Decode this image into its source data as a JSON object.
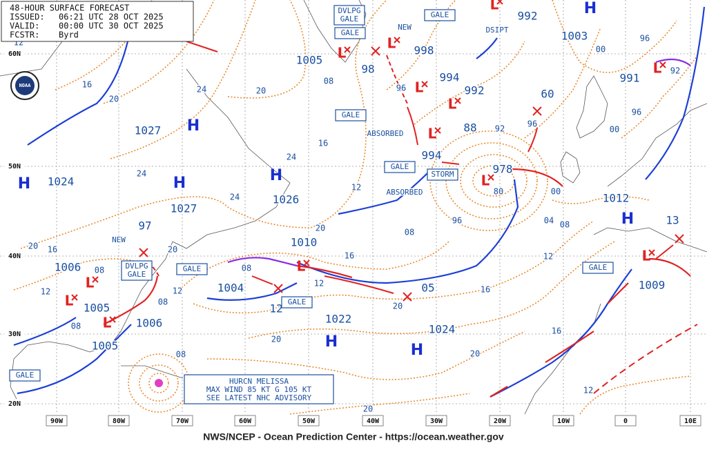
{
  "header": {
    "title": "48-HOUR SURFACE FORECAST",
    "issued_label": "ISSUED:",
    "issued": "06:21 UTC 28 OCT 2025",
    "valid_label": "VALID:",
    "valid": "00:00 UTC 30 OCT 2025",
    "fcstr_label": "FCSTR:",
    "fcstr": "Byrd"
  },
  "logo": "NOAA",
  "footer": "NWS/NCEP - Ocean Prediction Center - https://ocean.weather.gov",
  "lat_labels": [
    "60N",
    "50N",
    "40N",
    "30N",
    "20N"
  ],
  "lon_labels": [
    "90W",
    "80W",
    "70W",
    "60W",
    "50W",
    "40W",
    "30W",
    "20W",
    "10W",
    "0",
    "10E"
  ],
  "pressure_labels": [
    "1005",
    "998",
    "994",
    "992",
    "1003",
    "992",
    "991",
    "1027",
    "1024",
    "1027",
    "1026",
    "978",
    "1012",
    "1010",
    "1004",
    "1006",
    "1005",
    "1006",
    "1005",
    "1022",
    "1024",
    "1009",
    "994",
    "98",
    "88",
    "60",
    "97",
    "12",
    "05",
    "13"
  ],
  "highs": [
    "H",
    "H",
    "H",
    "H",
    "H",
    "H",
    "H",
    "H"
  ],
  "lows": [
    "L",
    "L",
    "L",
    "L",
    "L",
    "L",
    "L",
    "L",
    "L",
    "L",
    "L",
    "L",
    "L"
  ],
  "isobar_labels": [
    "12",
    "16",
    "20",
    "24",
    "20",
    "08",
    "96",
    "16",
    "24",
    "24",
    "24",
    "12",
    "20",
    "08",
    "16",
    "12",
    "16",
    "04",
    "08",
    "00",
    "96",
    "80",
    "92",
    "96",
    "00",
    "96",
    "96",
    "00",
    "92",
    "20",
    "16",
    "08",
    "12",
    "08",
    "08",
    "12",
    "20",
    "08",
    "12",
    "20",
    "20",
    "08",
    "16",
    "20",
    "20",
    "12"
  ],
  "warning_boxes": [
    [
      "DVLPG",
      "GALE"
    ],
    [
      "GALE"
    ],
    [
      "GALE"
    ],
    [
      "GALE"
    ],
    [
      "GALE"
    ],
    [
      "STORM"
    ],
    [
      "DVLPG",
      "GALE"
    ],
    [
      "GALE"
    ],
    [
      "GALE"
    ],
    [
      "GALE"
    ],
    [
      "GALE"
    ]
  ],
  "annotations": [
    "NEW",
    "DSIPT",
    "ABSORBED",
    "ABSORBED",
    "NEW"
  ],
  "hurricane_box": [
    "HURCN MELISSA",
    "MAX WIND 85 KT G 105 KT",
    "SEE LATEST NHC ADVISORY"
  ]
}
